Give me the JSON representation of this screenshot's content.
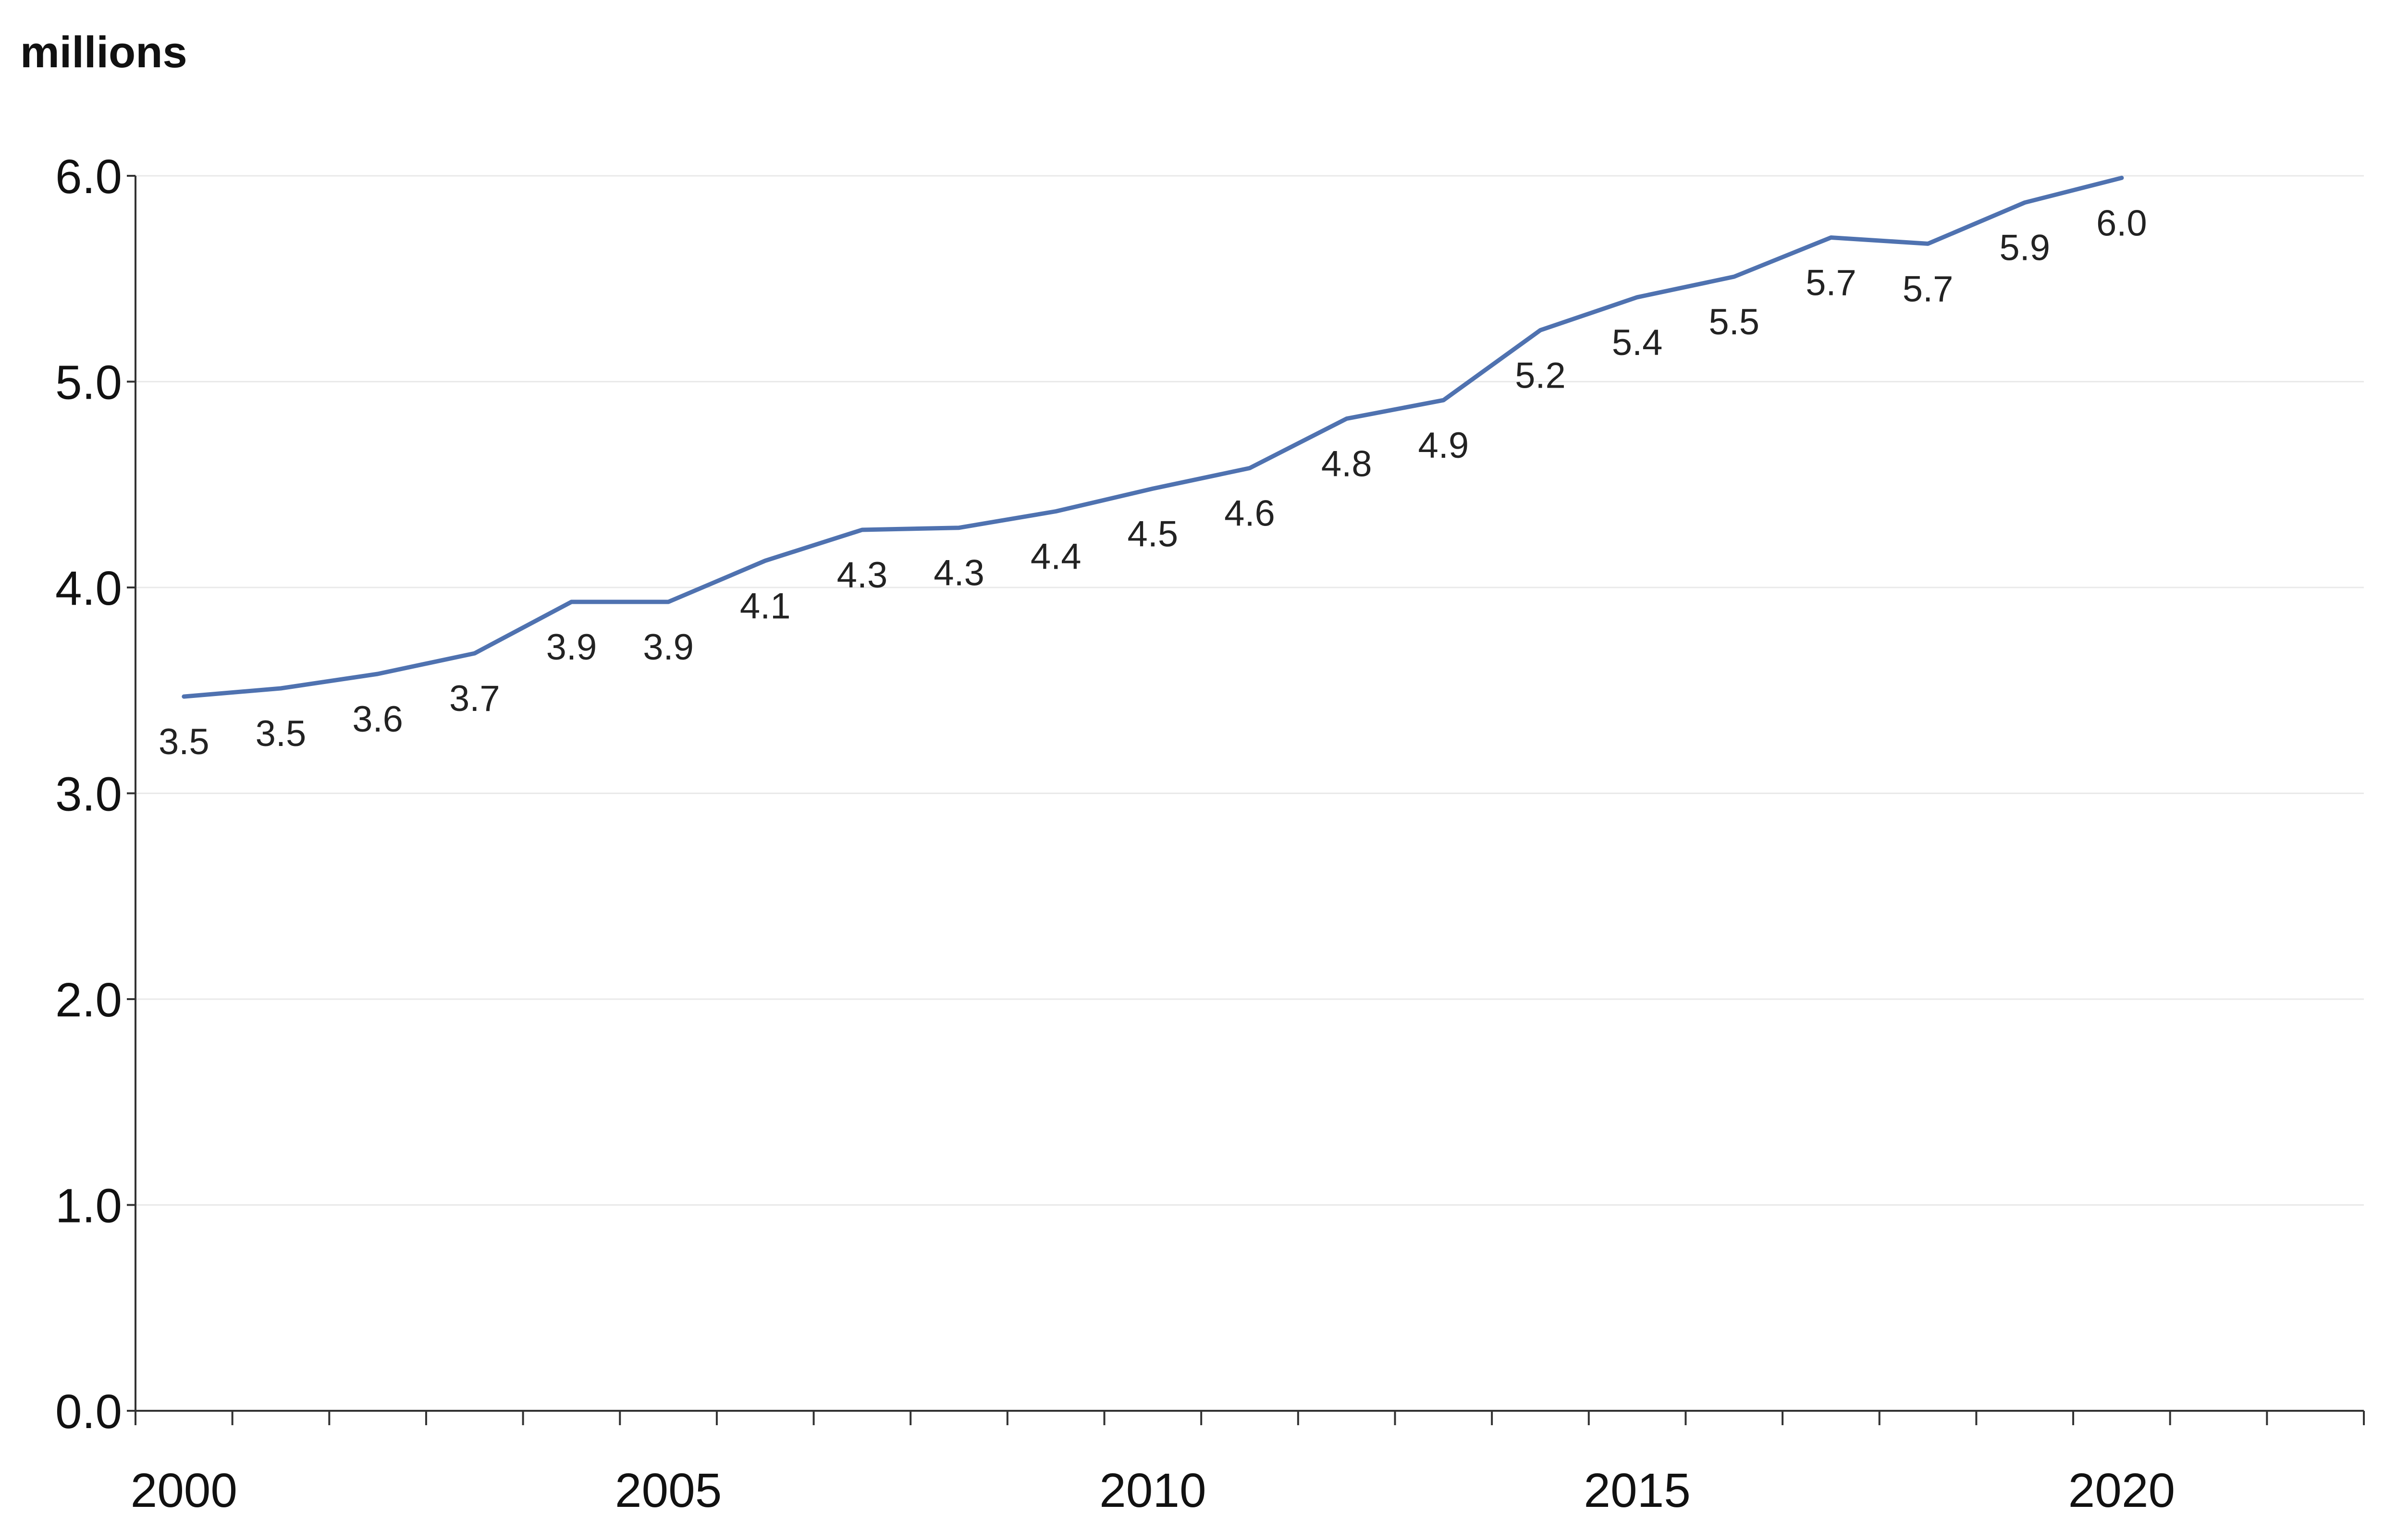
{
  "chart_data": {
    "type": "line",
    "unit_label": "millions",
    "title": "",
    "xlabel": "",
    "ylabel": "millions",
    "x": [
      2000,
      2001,
      2002,
      2003,
      2004,
      2005,
      2006,
      2007,
      2008,
      2009,
      2010,
      2011,
      2012,
      2013,
      2014,
      2015,
      2016,
      2017,
      2018,
      2019,
      2020
    ],
    "series": [
      {
        "values": [
          3.47,
          3.51,
          3.58,
          3.68,
          3.93,
          3.93,
          4.13,
          4.28,
          4.29,
          4.37,
          4.48,
          4.58,
          4.82,
          4.91,
          5.25,
          5.41,
          5.51,
          5.7,
          5.67,
          5.87,
          5.99
        ],
        "labels": [
          "3.5",
          "3.5",
          "3.6",
          "3.7",
          "3.9",
          "3.9",
          "4.1",
          "4.3",
          "4.3",
          "4.4",
          "4.5",
          "4.6",
          "4.8",
          "4.9",
          "5.2",
          "5.4",
          "5.5",
          "5.7",
          "5.7",
          "5.9",
          "6.0"
        ],
        "color": "#4f72b0"
      }
    ],
    "ylim": [
      0,
      6
    ],
    "xlim": [
      1999.5,
      2022.5
    ],
    "y_ticks": [
      "0.0",
      "1.0",
      "2.0",
      "3.0",
      "4.0",
      "5.0",
      "6.0"
    ],
    "x_ticks": [
      "2000",
      "2005",
      "2010",
      "2015",
      "2020"
    ],
    "grid": true,
    "legend": "none"
  }
}
